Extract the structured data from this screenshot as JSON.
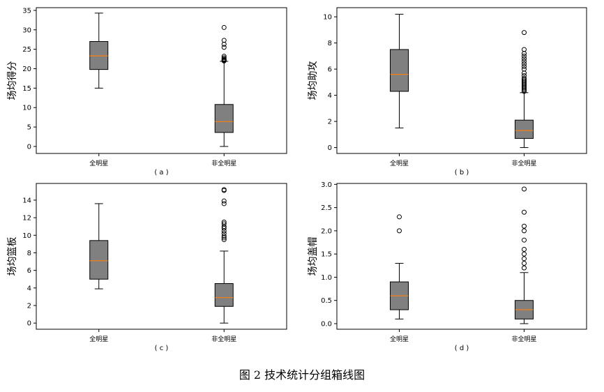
{
  "figure_caption": "图 2   技术统计分组箱线图",
  "colors": {
    "box_fill": "#808080",
    "median": "#ff7f0e",
    "line": "#000000"
  },
  "chart_data": [
    {
      "type": "box",
      "panel_label": "( a )",
      "ylabel": "场均得分",
      "categories": [
        "全明星",
        "非全明星"
      ],
      "ylim": [
        -1.8,
        35.7
      ],
      "yticks": [
        0,
        5,
        10,
        15,
        20,
        25,
        30,
        35
      ],
      "grid": false,
      "boxes": [
        {
          "name": "全明星",
          "whisker_low": 15.0,
          "q1": 19.8,
          "median": 23.3,
          "q3": 27.0,
          "whisker_high": 34.3,
          "outliers": []
        },
        {
          "name": "非全明星",
          "whisker_low": 0.0,
          "q1": 3.6,
          "median": 6.4,
          "q3": 10.8,
          "whisker_high": 21.9,
          "outliers": [
            22.0,
            22.1,
            22.2,
            22.3,
            22.5,
            22.8,
            23.2,
            25.5,
            26.3,
            27.3,
            30.6
          ]
        }
      ]
    },
    {
      "type": "box",
      "panel_label": "( b )",
      "ylabel": "场均助攻",
      "categories": [
        "全明星",
        "非全明星"
      ],
      "ylim": [
        -0.45,
        10.7
      ],
      "yticks": [
        0,
        2,
        4,
        6,
        8,
        10
      ],
      "grid": false,
      "boxes": [
        {
          "name": "全明星",
          "whisker_low": 1.5,
          "q1": 4.3,
          "median": 5.6,
          "q3": 7.5,
          "whisker_high": 10.2,
          "outliers": []
        },
        {
          "name": "非全明星",
          "whisker_low": 0.0,
          "q1": 0.7,
          "median": 1.3,
          "q3": 2.1,
          "whisker_high": 4.2,
          "outliers": [
            4.3,
            4.4,
            4.5,
            4.6,
            4.7,
            4.8,
            4.9,
            5.0,
            5.1,
            5.2,
            5.3,
            5.5,
            5.7,
            6.0,
            6.2,
            6.4,
            6.6,
            6.8,
            7.0,
            7.2,
            7.5,
            8.8
          ]
        }
      ]
    },
    {
      "type": "box",
      "panel_label": "( c )",
      "ylabel": "场均篮板",
      "categories": [
        "全明星",
        "非全明星"
      ],
      "ylim": [
        -0.7,
        15.9
      ],
      "yticks": [
        0,
        2,
        4,
        6,
        8,
        10,
        12,
        14
      ],
      "grid": false,
      "boxes": [
        {
          "name": "全明星",
          "whisker_low": 3.9,
          "q1": 5.0,
          "median": 7.1,
          "q3": 9.4,
          "whisker_high": 13.6,
          "outliers": []
        },
        {
          "name": "非全明星",
          "whisker_low": 0.0,
          "q1": 1.9,
          "median": 2.9,
          "q3": 4.5,
          "whisker_high": 8.2,
          "outliers": [
            9.5,
            9.7,
            9.9,
            10.2,
            10.5,
            10.8,
            11.0,
            11.3,
            11.5,
            13.6,
            13.9,
            15.1,
            15.2
          ]
        }
      ]
    },
    {
      "type": "box",
      "panel_label": "( d )",
      "ylabel": "场均盖帽",
      "categories": [
        "全明星",
        "非全明星"
      ],
      "ylim": [
        -0.12,
        3.02
      ],
      "yticks": [
        0.0,
        0.5,
        1.0,
        1.5,
        2.0,
        2.5,
        3.0
      ],
      "ytick_labels": [
        "0.0",
        "0.5",
        "1.0",
        "1.5",
        "2.0",
        "2.5",
        "3.0"
      ],
      "grid": false,
      "boxes": [
        {
          "name": "全明星",
          "whisker_low": 0.1,
          "q1": 0.3,
          "median": 0.6,
          "q3": 0.9,
          "whisker_high": 1.3,
          "outliers": [
            2.0,
            2.3
          ]
        },
        {
          "name": "非全明星",
          "whisker_low": 0.0,
          "q1": 0.1,
          "median": 0.3,
          "q3": 0.5,
          "whisker_high": 1.1,
          "outliers": [
            1.2,
            1.3,
            1.4,
            1.5,
            1.6,
            1.8,
            2.0,
            2.1,
            2.4,
            2.9
          ]
        }
      ]
    }
  ]
}
